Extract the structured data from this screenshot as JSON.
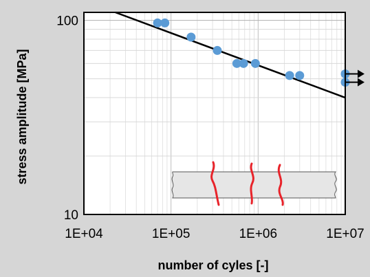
{
  "chart_data": {
    "type": "scatter",
    "title": "",
    "xlabel": "number of cyles [-]",
    "ylabel": "stress amplitude [MPa]",
    "xscale": "log",
    "yscale": "log",
    "xlim": [
      10000,
      10000000
    ],
    "ylim": [
      10,
      110
    ],
    "x_tick_labels": [
      "1E+04",
      "1E+05",
      "1E+06",
      "1E+07"
    ],
    "y_tick_labels": [
      "10",
      "100"
    ],
    "grid": true,
    "series": [
      {
        "kind": "points",
        "color": "#5b9bd5",
        "points": [
          {
            "x": 70000,
            "y": 97
          },
          {
            "x": 85000,
            "y": 97
          },
          {
            "x": 170000,
            "y": 82
          },
          {
            "x": 340000,
            "y": 70
          },
          {
            "x": 570000,
            "y": 60
          },
          {
            "x": 680000,
            "y": 60
          },
          {
            "x": 930000,
            "y": 60
          },
          {
            "x": 2300000,
            "y": 52
          },
          {
            "x": 3000000,
            "y": 52
          },
          {
            "x": 10000000,
            "y": 53
          },
          {
            "x": 10000000,
            "y": 48
          }
        ]
      },
      {
        "kind": "fit-line",
        "color": "#000000",
        "points": [
          {
            "x": 23000,
            "y": 110
          },
          {
            "x": 10000000,
            "y": 40
          }
        ]
      }
    ],
    "runouts": [
      {
        "x": 10000000,
        "y": 53
      },
      {
        "x": 10000000,
        "y": 48
      }
    ],
    "inset": {
      "icon": "specimen-with-cracks-icon",
      "specimen_fill": "#e6e6e6",
      "crack_color": "#e8232a"
    }
  }
}
